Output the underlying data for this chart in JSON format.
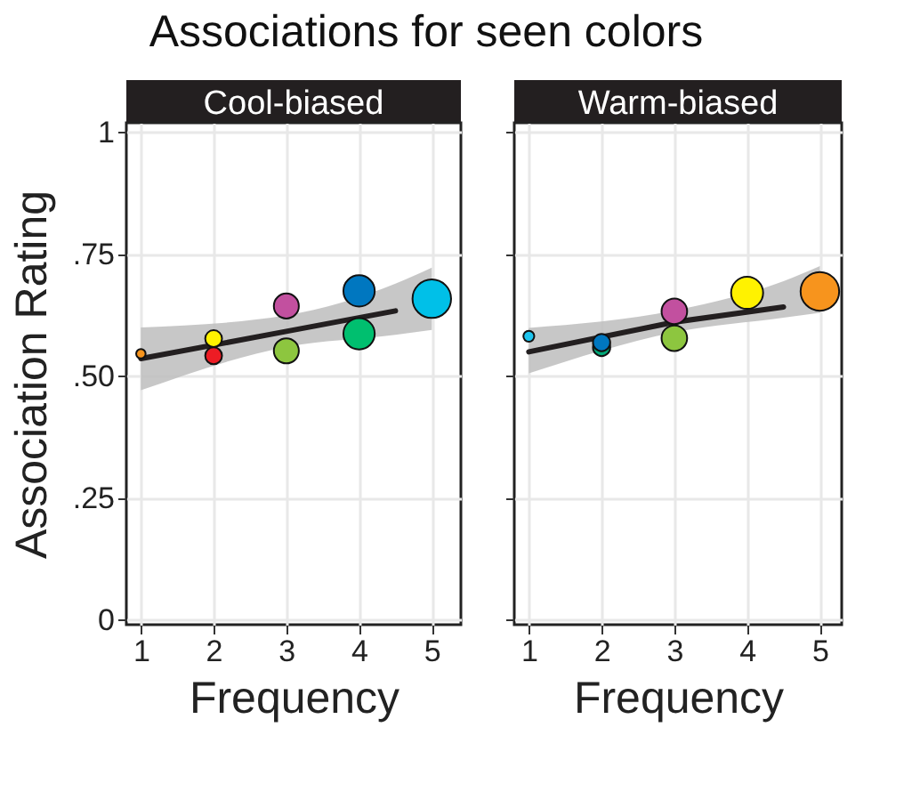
{
  "chart_data": [
    {
      "type": "bubble",
      "title": "Cool-biased",
      "annotations": [
        "Associations for seen colors"
      ],
      "xlabel": "Frequency",
      "ylabel": "Association Rating",
      "xlim": [
        0.8,
        5.4
      ],
      "ylim": [
        -0.01,
        1.02
      ],
      "xticks": [
        1,
        2,
        3,
        4,
        5
      ],
      "yticks": [
        {
          "value": 0,
          "label": "0"
        },
        {
          "value": 0.25,
          "label": ".25"
        },
        {
          "value": 0.5,
          "label": ".50"
        },
        {
          "value": 0.75,
          "label": ".75"
        },
        {
          "value": 1,
          "label": "1"
        }
      ],
      "grid": true,
      "series": [
        {
          "type": "line",
          "color": "#231f20",
          "x": [
            1,
            3,
            4.5,
            5
          ],
          "values": [
            0.536,
            0.592,
            0.634,
            null
          ],
          "lower": [
            0.471,
            0.56,
            0.585,
            0.595
          ],
          "upper": [
            0.6,
            0.625,
            0.69,
            0.723
          ]
        },
        {
          "marker": "circle",
          "x": [
            1,
            2,
            2,
            3,
            3,
            4,
            4,
            5
          ],
          "values": [
            0.546,
            0.577,
            0.542,
            0.644,
            0.552,
            0.675,
            0.587,
            0.659
          ],
          "sizes": [
            0.06,
            0.19,
            0.19,
            0.42,
            0.42,
            0.66,
            0.66,
            1
          ],
          "colors": [
            "#f7941d",
            "#fff200",
            "#ed1c24",
            "#c2509f",
            "#8dc63f",
            "#0077c0",
            "#00bf6f",
            "#00c0e8"
          ]
        }
      ]
    },
    {
      "type": "bubble",
      "title": "Warm-biased",
      "xlabel": "Frequency",
      "xlim": [
        0.8,
        5.3
      ],
      "ylim": [
        -0.01,
        1.02
      ],
      "xticks": [
        1,
        2,
        3,
        4,
        5
      ],
      "yticks": [
        {
          "value": 0,
          "label": null
        },
        {
          "value": 0.25,
          "label": null
        },
        {
          "value": 0.5,
          "label": null
        },
        {
          "value": 0.75,
          "label": null
        },
        {
          "value": 1,
          "label": null
        }
      ],
      "tick_labels": "x",
      "grid": true,
      "series": [
        {
          "type": "line",
          "color": "#231f20",
          "x": [
            1,
            3,
            4.5,
            5
          ],
          "values": [
            0.55,
            0.611,
            0.642,
            null
          ],
          "lower": [
            0.506,
            0.59,
            0.62,
            0.63
          ],
          "upper": [
            0.599,
            0.635,
            0.695,
            0.726
          ]
        },
        {
          "marker": "circle",
          "x": [
            1,
            2,
            2,
            3,
            3,
            4,
            5
          ],
          "values": [
            0.582,
            0.559,
            0.569,
            0.633,
            0.578,
            0.671,
            0.674
          ],
          "sizes": [
            0.08,
            0.2,
            0.2,
            0.44,
            0.44,
            0.69,
            1
          ],
          "colors": [
            "#1ec5ef",
            "#00a877",
            "#0077c0",
            "#c2509f",
            "#8dc63f",
            "#fff200",
            "#f7941d"
          ]
        }
      ]
    }
  ]
}
